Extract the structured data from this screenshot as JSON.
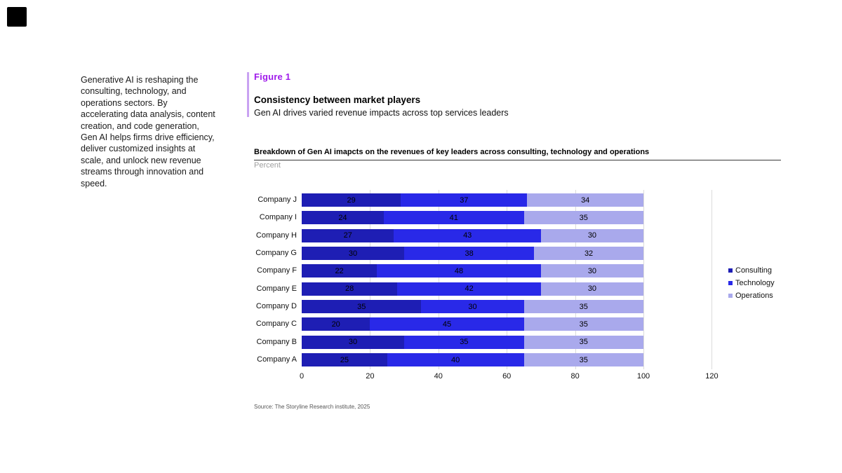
{
  "intro_paragraph": "Generative AI is reshaping the consulting, technology, and operations sectors. By accelerating data analysis, content creation, and code generation, Gen AI helps firms drive efficiency, deliver customized insights at scale, and unlock new revenue streams through innovation and speed.",
  "figure": {
    "label": "Figure 1",
    "title": "Consistency between market players",
    "subtitle": "Gen AI drives varied revenue impacts across top services leaders",
    "label_color": "#a01beb",
    "accent_bar_color": "#c9a2f2"
  },
  "chart_data": {
    "type": "bar",
    "orientation": "horizontal",
    "stacked": true,
    "title": "Breakdown of Gen AI imapcts on the revenues of key leaders across consulting, technology and operations",
    "unit_label": "Percent",
    "categories": [
      "Company J",
      "Company I",
      "Company H",
      "Company G",
      "Company F",
      "Company E",
      "Company D",
      "Company C",
      "Company B",
      "Company A"
    ],
    "series": [
      {
        "name": "Consulting",
        "color": "#1e1eb4",
        "values": [
          29,
          24,
          27,
          30,
          22,
          28,
          35,
          20,
          30,
          25
        ]
      },
      {
        "name": "Technology",
        "color": "#2929e8",
        "values": [
          37,
          41,
          43,
          38,
          48,
          42,
          30,
          45,
          35,
          40
        ]
      },
      {
        "name": "Operations",
        "color": "#a9a9ec",
        "values": [
          34,
          35,
          30,
          32,
          30,
          30,
          35,
          35,
          35,
          35
        ]
      }
    ],
    "x_ticks": [
      0,
      20,
      40,
      60,
      80,
      100,
      120
    ],
    "xlim": [
      0,
      120
    ],
    "grid": "vertical-light-gray",
    "legend_position": "right",
    "value_labels": "inside-center"
  },
  "source": "Source: The Storyline Research institute, 2025"
}
